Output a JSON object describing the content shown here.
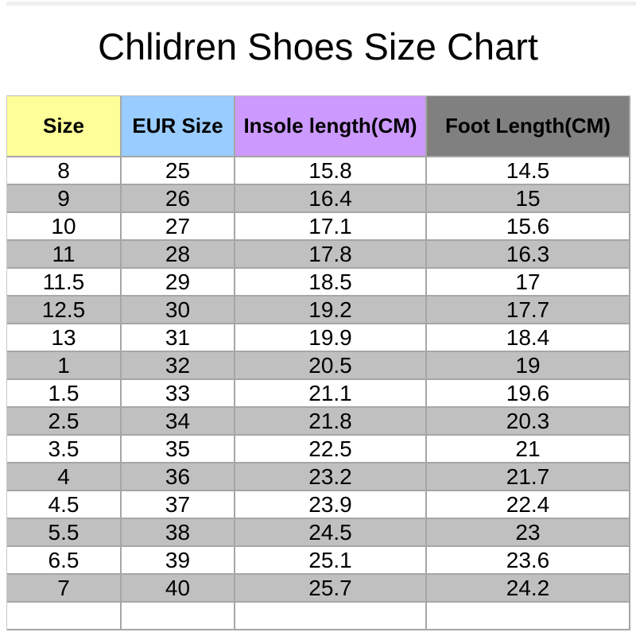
{
  "title": "Chlidren Shoes Size Chart",
  "chart_data": {
    "type": "table",
    "title": "Chlidren Shoes Size Chart",
    "columns": [
      "Size",
      "EUR Size",
      "Insole length(CM)",
      "Foot Length(CM)"
    ],
    "rows": [
      [
        "8",
        "25",
        "15.8",
        "14.5"
      ],
      [
        "9",
        "26",
        "16.4",
        "15"
      ],
      [
        "10",
        "27",
        "17.1",
        "15.6"
      ],
      [
        "11",
        "28",
        "17.8",
        "16.3"
      ],
      [
        "11.5",
        "29",
        "18.5",
        "17"
      ],
      [
        "12.5",
        "30",
        "19.2",
        "17.7"
      ],
      [
        "13",
        "31",
        "19.9",
        "18.4"
      ],
      [
        "1",
        "32",
        "20.5",
        "19"
      ],
      [
        "1.5",
        "33",
        "21.1",
        "19.6"
      ],
      [
        "2.5",
        "34",
        "21.8",
        "20.3"
      ],
      [
        "3.5",
        "35",
        "22.5",
        "21"
      ],
      [
        "4",
        "36",
        "23.2",
        "21.7"
      ],
      [
        "4.5",
        "37",
        "23.9",
        "22.4"
      ],
      [
        "5.5",
        "38",
        "24.5",
        "23"
      ],
      [
        "6.5",
        "39",
        "25.1",
        "23.6"
      ],
      [
        "7",
        "40",
        "25.7",
        "24.2"
      ],
      [
        "",
        "",
        "",
        ""
      ]
    ],
    "layout_hints": {
      "striped_rows": true,
      "first_data_row_stripe": "white"
    }
  },
  "style": {
    "header_bg": [
      "#FFFF99",
      "#99CCFF",
      "#CC99FF",
      "#808080"
    ],
    "alt_row_bg": "#C0C0C0",
    "base_row_bg": "#FFFFFF",
    "grid_color": "#A6A6A6",
    "top_strip_color": "#EFEFEF",
    "text_color": "#000000"
  }
}
